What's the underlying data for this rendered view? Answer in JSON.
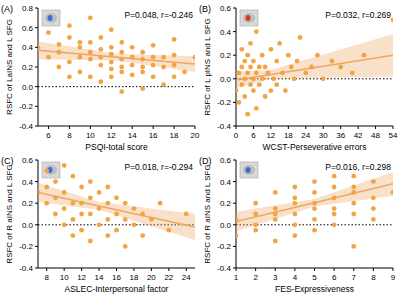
{
  "chart_data": [
    {
      "type": "scatter",
      "panel_label": "(A)",
      "annotation": "P=0.048, r=-0.246",
      "x_label": "PSQI-total score",
      "y_label": "RSFC of LaINS and L SFG",
      "xlim": [
        5,
        20
      ],
      "xticks": [
        6,
        8,
        10,
        12,
        14,
        16,
        18,
        20
      ],
      "ylim": [
        -0.4,
        0.8
      ],
      "yticks": [
        -0.4,
        -0.2,
        {
          "value": 0,
          "label": "0.0"
        },
        0.2,
        0.4,
        0.6,
        0.8
      ],
      "hline": 0,
      "series": [
        {
          "type": "scatter",
          "color": "#f2a445",
          "marker": "circle",
          "x": [
            5,
            6,
            6,
            7,
            7,
            7,
            8,
            8,
            8,
            8,
            9,
            9,
            9,
            9,
            10,
            10,
            10,
            10,
            10,
            11,
            11,
            11,
            11,
            11,
            12,
            12,
            12,
            12,
            12,
            12,
            13,
            13,
            13,
            13,
            13,
            13,
            14,
            14,
            14,
            14,
            15,
            15,
            15,
            15,
            15,
            16,
            16,
            16,
            16,
            17,
            17,
            17,
            18,
            18,
            18,
            18,
            19,
            20
          ],
          "values": [
            0.4,
            0.55,
            0.3,
            0.2,
            0.43,
            0.35,
            0.5,
            0.62,
            0.25,
            0.1,
            0.45,
            0.4,
            0.3,
            0.15,
            0.7,
            0.45,
            0.35,
            0.28,
            0.1,
            0.5,
            0.38,
            0.3,
            0.22,
            0.05,
            0.58,
            0.4,
            0.33,
            0.25,
            0.18,
            0.1,
            0.45,
            0.35,
            0.28,
            0.2,
            0.15,
            -0.05,
            0.4,
            0.3,
            0.22,
            0.12,
            0.35,
            0.28,
            0.2,
            0.15,
            -0.02,
            0.42,
            0.3,
            0.22,
            0.1,
            0.3,
            0.2,
            0.02,
            0.32,
            0.22,
            0.1,
            0.48,
            0.15,
            0.3
          ]
        },
        {
          "type": "line",
          "color": "#eea660",
          "x": [
            5,
            12.5,
            20
          ],
          "values": [
            0.37,
            0.3,
            0.23
          ],
          "ci_lower": [
            0.28,
            0.265,
            0.15
          ],
          "ci_upper": [
            0.46,
            0.335,
            0.31
          ]
        }
      ]
    },
    {
      "type": "scatter",
      "panel_label": "(B)",
      "annotation": "P=0.032, r=0.269",
      "x_label": "WCST-Perseverative errors",
      "y_label": "RSFC of L pINS and L SFG",
      "xlim": [
        0,
        54
      ],
      "xticks": [
        0,
        6,
        12,
        18,
        24,
        30,
        36,
        42,
        48,
        54
      ],
      "ylim": [
        -0.4,
        0.6
      ],
      "yticks": [
        -0.4,
        -0.2,
        {
          "value": 0,
          "label": "0.0"
        },
        0.2,
        0.4,
        0.6
      ],
      "hline": 0,
      "series": [
        {
          "type": "scatter",
          "color": "#f2a445",
          "marker": "circle",
          "x": [
            0,
            1,
            1,
            2,
            2,
            2,
            3,
            3,
            3,
            4,
            4,
            4,
            5,
            5,
            5,
            6,
            6,
            6,
            7,
            7,
            7,
            8,
            8,
            9,
            9,
            10,
            10,
            11,
            12,
            12,
            13,
            14,
            14,
            15,
            16,
            17,
            18,
            19,
            20,
            21,
            22,
            24,
            26,
            28,
            30,
            33,
            36,
            40,
            44,
            54
          ],
          "values": [
            -0.1,
            0.05,
            -0.2,
            0.1,
            -0.05,
            0.25,
            0.0,
            -0.15,
            0.15,
            0.05,
            -0.3,
            0.2,
            -0.05,
            0.1,
            0.3,
            0.0,
            -0.1,
            0.15,
            0.05,
            -0.25,
            0.4,
            0.1,
            -0.05,
            0.0,
            0.2,
            -0.15,
            0.1,
            0.05,
            0.25,
            -0.1,
            0.0,
            0.15,
            -0.05,
            0.3,
            0.05,
            -0.1,
            0.2,
            0.1,
            0.0,
            0.15,
            0.35,
            0.05,
            0.1,
            0.2,
            0.0,
            0.15,
            0.1,
            0.05,
            0.2,
            0.5
          ]
        },
        {
          "type": "line",
          "color": "#eea660",
          "x": [
            0,
            12,
            54
          ],
          "values": [
            -0.01,
            0.037,
            0.2
          ],
          "ci_lower": [
            -0.08,
            0.0,
            0.02
          ],
          "ci_upper": [
            0.06,
            0.075,
            0.38
          ]
        }
      ]
    },
    {
      "type": "scatter",
      "panel_label": "(C)",
      "annotation": "P=0.018, r=-0.294",
      "x_label": "ASLEC-Interpersonal factor",
      "y_label": "RSFC of R aINS and L SFG",
      "xlim": [
        7,
        25
      ],
      "xticks": [
        8,
        10,
        12,
        14,
        16,
        18,
        20,
        22,
        24
      ],
      "ylim": [
        -0.4,
        0.6
      ],
      "yticks": [
        -0.4,
        -0.2,
        {
          "value": 0,
          "label": "0.0"
        },
        0.2,
        0.4,
        0.6
      ],
      "hline": 0,
      "series": [
        {
          "type": "scatter",
          "color": "#f2a445",
          "marker": "circle",
          "x": [
            7,
            8,
            8,
            8,
            9,
            9,
            9,
            10,
            10,
            10,
            10,
            11,
            11,
            11,
            11,
            12,
            12,
            12,
            12,
            13,
            13,
            13,
            13,
            14,
            14,
            14,
            15,
            15,
            15,
            15,
            16,
            16,
            16,
            17,
            17,
            17,
            18,
            18,
            19,
            19,
            20,
            21,
            22,
            24
          ],
          "values": [
            0.3,
            0.5,
            0.35,
            0.2,
            0.4,
            0.25,
            0.1,
            0.55,
            0.3,
            0.15,
            0.0,
            0.45,
            0.2,
            0.05,
            -0.1,
            0.35,
            0.2,
            0.1,
            -0.05,
            0.4,
            0.25,
            0.1,
            -0.15,
            0.3,
            0.15,
            0.0,
            0.35,
            0.2,
            0.05,
            -0.1,
            0.25,
            0.1,
            -0.05,
            0.2,
            0.05,
            -0.2,
            0.15,
            0.0,
            0.1,
            -0.1,
            0.05,
            0.2,
            -0.05,
            0.1
          ]
        },
        {
          "type": "line",
          "color": "#eea660",
          "x": [
            7,
            14,
            25
          ],
          "values": [
            0.3,
            0.175,
            -0.02
          ],
          "ci_lower": [
            0.21,
            0.14,
            -0.14
          ],
          "ci_upper": [
            0.39,
            0.21,
            0.1
          ]
        }
      ]
    },
    {
      "type": "scatter",
      "panel_label": "(D)",
      "annotation": "P=0.016, r=0.298",
      "x_label": "FES-Expressiveness",
      "y_label": "RSFC of R aINS and L SFG",
      "xlim": [
        1,
        9
      ],
      "xticks": [
        1,
        2,
        3,
        4,
        5,
        6,
        7,
        8,
        9
      ],
      "ylim": [
        -0.4,
        0.6
      ],
      "yticks": [
        -0.4,
        -0.2,
        {
          "value": 0,
          "label": "0.0"
        },
        0.2,
        0.4,
        0.6
      ],
      "hline": 0,
      "series": [
        {
          "type": "scatter",
          "color": "#f2a445",
          "marker": "circle",
          "x": [
            1,
            1,
            2,
            2,
            2,
            2,
            3,
            3,
            3,
            3,
            3,
            4,
            4,
            4,
            4,
            4,
            4,
            5,
            5,
            5,
            5,
            5,
            5,
            6,
            6,
            6,
            6,
            6,
            6,
            7,
            7,
            7,
            7,
            7,
            7,
            8,
            8,
            8,
            8,
            9
          ],
          "values": [
            0.05,
            -0.1,
            0.1,
            -0.05,
            0.2,
            0.0,
            0.15,
            0.05,
            -0.15,
            0.3,
            0.1,
            0.2,
            0.0,
            0.35,
            0.1,
            -0.1,
            0.25,
            0.15,
            0.3,
            0.05,
            0.4,
            -0.05,
            0.2,
            0.25,
            0.1,
            0.35,
            0.45,
            0.0,
            0.15,
            0.3,
            0.2,
            0.1,
            0.45,
            -0.2,
            0.35,
            0.25,
            0.4,
            0.15,
            0.05,
            0.3
          ]
        },
        {
          "type": "line",
          "color": "#eea660",
          "x": [
            1,
            5,
            9
          ],
          "values": [
            0.03,
            0.205,
            0.38
          ],
          "ci_lower": [
            -0.06,
            0.17,
            0.27
          ],
          "ci_upper": [
            0.12,
            0.24,
            0.49
          ]
        }
      ]
    }
  ]
}
